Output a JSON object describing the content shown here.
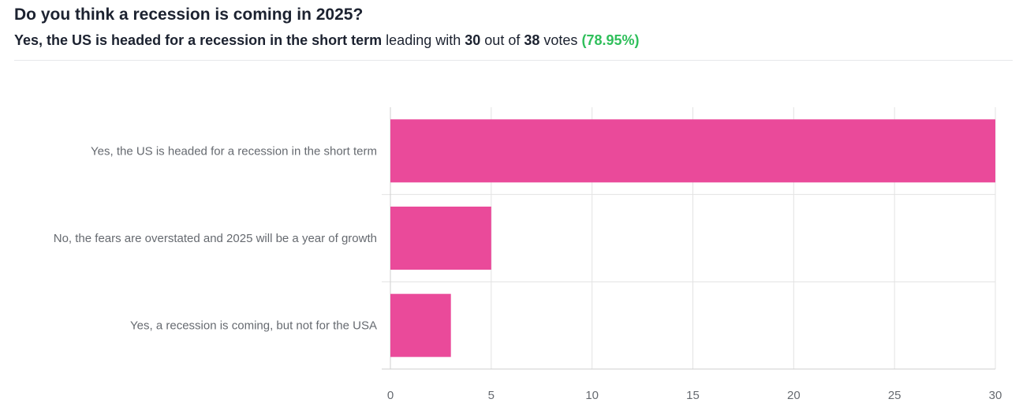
{
  "poll": {
    "question": "Do you think a recession is coming in 2025?",
    "leader_option": "Yes, the US is headed for a recession in the short term",
    "leading_with_text": "leading with",
    "leader_votes": "30",
    "out_of_text": "out of",
    "total_votes": "38",
    "votes_text": "votes",
    "leader_percent": "(78.95%)"
  },
  "colors": {
    "bar": "#ea4a9a",
    "grid": "#e3e3e3",
    "axis": "#cfcfcf",
    "percent_green": "#2fbf5b"
  },
  "chart_data": {
    "type": "bar",
    "orientation": "horizontal",
    "categories": [
      "Yes, the US is headed for a recession in the short term",
      "No, the fears are overstated and 2025 will be a year of growth",
      "Yes, a recession is coming, but not for the USA"
    ],
    "values": [
      30,
      5,
      3
    ],
    "xlim": [
      0,
      30
    ],
    "xticks": [
      0,
      5,
      10,
      15,
      20,
      25,
      30
    ],
    "grid": true,
    "legend": "none"
  }
}
